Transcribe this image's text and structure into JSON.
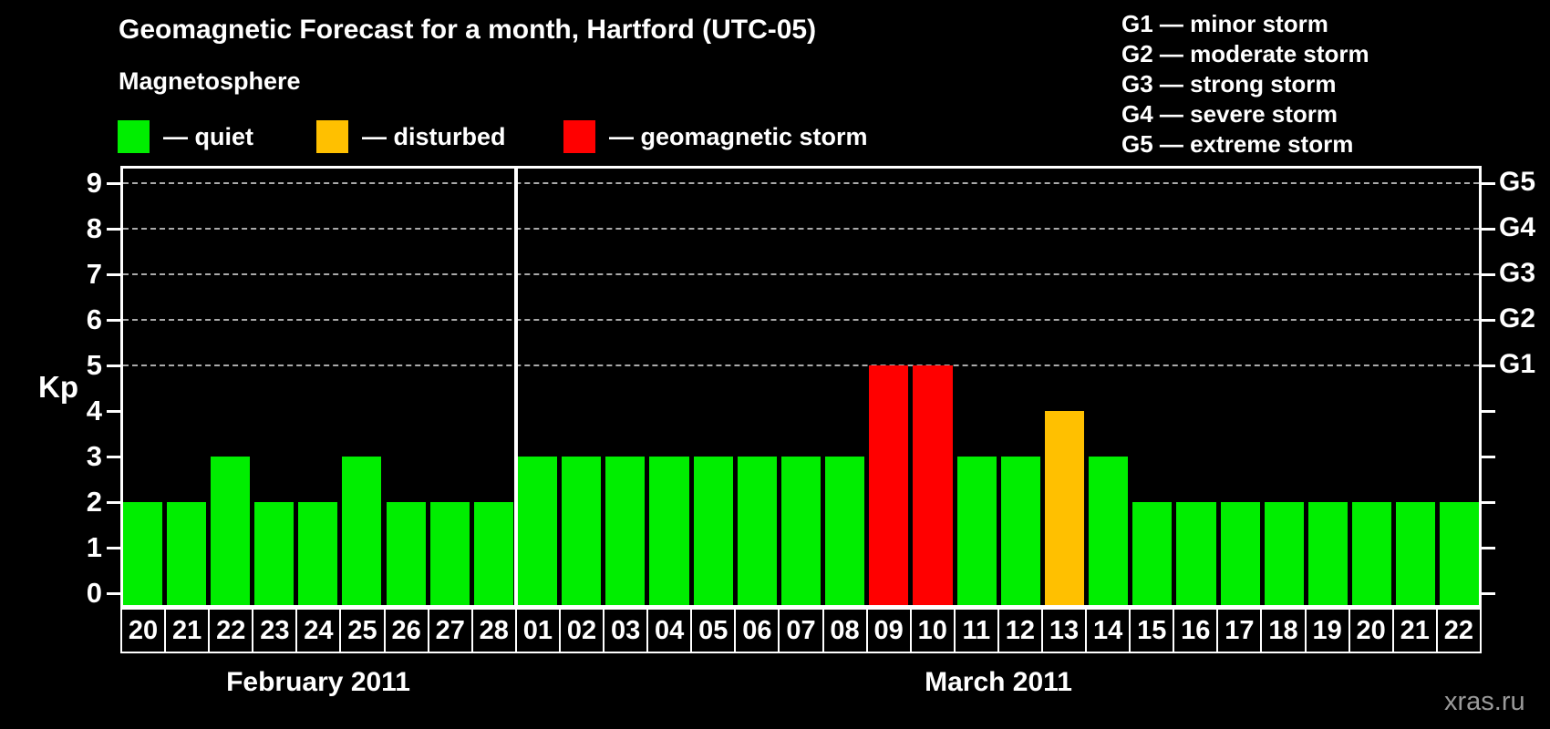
{
  "title": "Geomagnetic Forecast for a month, Hartford (UTC-05)",
  "watermark": "xras.ru",
  "magnetosphere": {
    "heading": "Magnetosphere",
    "legend": [
      {
        "key": "quiet",
        "label": "— quiet",
        "color": "#00ee00"
      },
      {
        "key": "disturbed",
        "label": "— disturbed",
        "color": "#ffc000"
      },
      {
        "key": "storm",
        "label": "— geomagnetic storm",
        "color": "#ff0000"
      }
    ]
  },
  "g_scale_legend": [
    "G1 — minor storm",
    "G2 — moderate storm",
    "G3 — strong storm",
    "G4 — severe storm",
    "G5 — extreme storm"
  ],
  "chart_data": {
    "type": "bar",
    "title": "Geomagnetic Forecast for a month, Hartford (UTC-05)",
    "ylabel": "Kp",
    "ylim": [
      0,
      9
    ],
    "yticks": [
      0,
      1,
      2,
      3,
      4,
      5,
      6,
      7,
      8,
      9
    ],
    "grid_levels": [
      5,
      6,
      7,
      8,
      9
    ],
    "grid": "dashed horizontal at Kp 5-9 only",
    "legend_position": "top",
    "right_axis": [
      {
        "label": "G1",
        "kp": 5
      },
      {
        "label": "G2",
        "kp": 6
      },
      {
        "label": "G3",
        "kp": 7
      },
      {
        "label": "G4",
        "kp": 8
      },
      {
        "label": "G5",
        "kp": 9
      }
    ],
    "status_colors": {
      "quiet": "#00ee00",
      "disturbed": "#ffc000",
      "storm": "#ff0000"
    },
    "months": [
      {
        "label": "February 2011",
        "days": [
          {
            "day": "20",
            "kp": 2,
            "status": "quiet"
          },
          {
            "day": "21",
            "kp": 2,
            "status": "quiet"
          },
          {
            "day": "22",
            "kp": 3,
            "status": "quiet"
          },
          {
            "day": "23",
            "kp": 2,
            "status": "quiet"
          },
          {
            "day": "24",
            "kp": 2,
            "status": "quiet"
          },
          {
            "day": "25",
            "kp": 3,
            "status": "quiet"
          },
          {
            "day": "26",
            "kp": 2,
            "status": "quiet"
          },
          {
            "day": "27",
            "kp": 2,
            "status": "quiet"
          },
          {
            "day": "28",
            "kp": 2,
            "status": "quiet"
          }
        ]
      },
      {
        "label": "March 2011",
        "days": [
          {
            "day": "01",
            "kp": 3,
            "status": "quiet"
          },
          {
            "day": "02",
            "kp": 3,
            "status": "quiet"
          },
          {
            "day": "03",
            "kp": 3,
            "status": "quiet"
          },
          {
            "day": "04",
            "kp": 3,
            "status": "quiet"
          },
          {
            "day": "05",
            "kp": 3,
            "status": "quiet"
          },
          {
            "day": "06",
            "kp": 3,
            "status": "quiet"
          },
          {
            "day": "07",
            "kp": 3,
            "status": "quiet"
          },
          {
            "day": "08",
            "kp": 3,
            "status": "quiet"
          },
          {
            "day": "09",
            "kp": 5,
            "status": "storm"
          },
          {
            "day": "10",
            "kp": 5,
            "status": "storm"
          },
          {
            "day": "11",
            "kp": 3,
            "status": "quiet"
          },
          {
            "day": "12",
            "kp": 3,
            "status": "quiet"
          },
          {
            "day": "13",
            "kp": 4,
            "status": "disturbed"
          },
          {
            "day": "14",
            "kp": 3,
            "status": "quiet"
          },
          {
            "day": "15",
            "kp": 2,
            "status": "quiet"
          },
          {
            "day": "16",
            "kp": 2,
            "status": "quiet"
          },
          {
            "day": "17",
            "kp": 2,
            "status": "quiet"
          },
          {
            "day": "18",
            "kp": 2,
            "status": "quiet"
          },
          {
            "day": "19",
            "kp": 2,
            "status": "quiet"
          },
          {
            "day": "20",
            "kp": 2,
            "status": "quiet"
          },
          {
            "day": "21",
            "kp": 2,
            "status": "quiet"
          },
          {
            "day": "22",
            "kp": 2,
            "status": "quiet"
          }
        ]
      }
    ]
  }
}
